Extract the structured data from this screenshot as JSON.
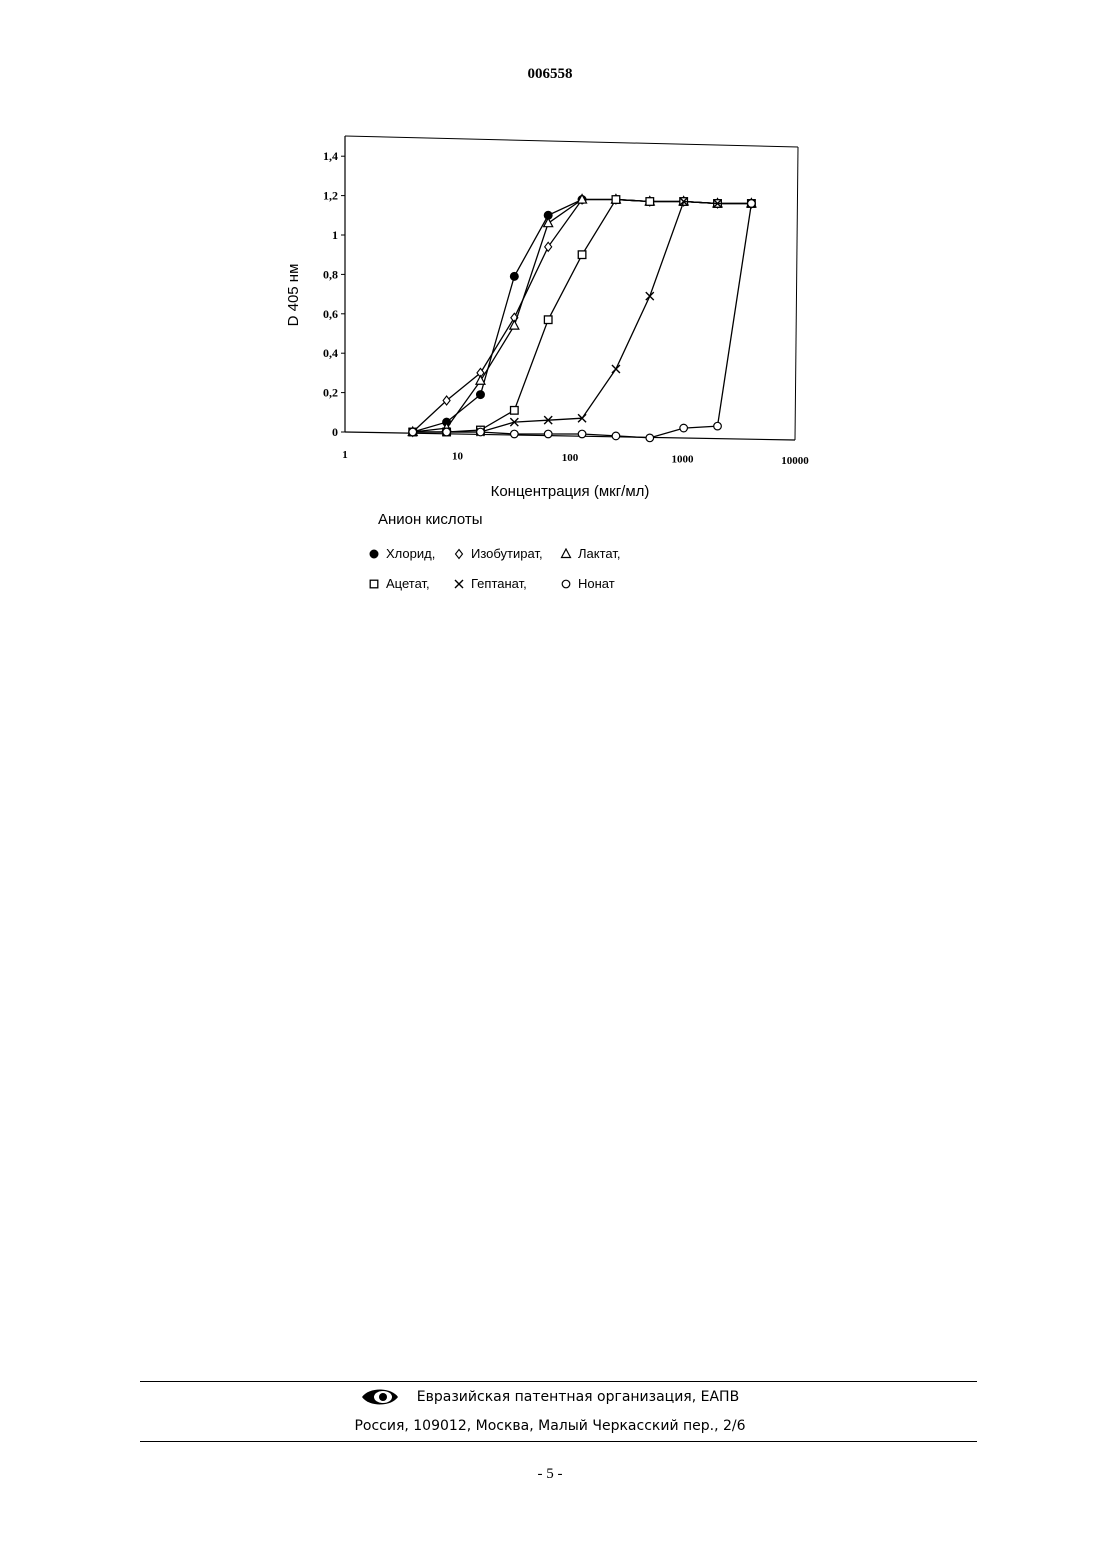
{
  "document": {
    "number": "006558",
    "page_number": "- 5 -"
  },
  "footer": {
    "organization": "Евразийская патентная организация, ЕАПВ",
    "address": "Россия, 109012, Москва, Малый Черкасский пер., 2/6",
    "logo_icon": "eapo-eye-logo-icon"
  },
  "legend": {
    "title": "Анион кислоты",
    "items": [
      {
        "label": "Хлорид,",
        "marker": "filled-circle"
      },
      {
        "label": "Изобутират,",
        "marker": "diamond"
      },
      {
        "label": "Лактат,",
        "marker": "triangle"
      },
      {
        "label": "Ацетат,",
        "marker": "square"
      },
      {
        "label": "Гептанат,",
        "marker": "x"
      },
      {
        "label": "Нонат",
        "marker": "circle"
      }
    ]
  },
  "chart_data": {
    "type": "line",
    "title": "",
    "xlabel": "Концентрация (мкг/мл)",
    "ylabel": "D 405 нм",
    "xscale": "log",
    "xlim": [
      1,
      10000
    ],
    "ylim": [
      0,
      1.5
    ],
    "xticks": [
      1,
      10,
      100,
      1000,
      10000
    ],
    "xtick_labels": [
      "1",
      "10",
      "100",
      "1000",
      "10000"
    ],
    "yticks": [
      0,
      0.2,
      0.4,
      0.6,
      0.8,
      1,
      1.2,
      1.4
    ],
    "ytick_labels": [
      "0",
      "0,2",
      "0,4",
      "0,6",
      "0,8",
      "1",
      "1,2",
      "1,4"
    ],
    "grid": false,
    "legend_position": "below",
    "series": [
      {
        "name": "Хлорид",
        "marker": "filled-circle",
        "x": [
          4,
          8,
          16,
          32,
          64,
          128,
          256,
          512,
          1024,
          2048,
          4096
        ],
        "y": [
          0,
          0.05,
          0.19,
          0.79,
          1.1,
          1.18,
          1.18,
          1.17,
          1.17,
          1.16,
          1.16
        ]
      },
      {
        "name": "Изобутират",
        "marker": "diamond",
        "x": [
          4,
          8,
          16,
          32,
          64,
          128,
          256,
          512,
          1024,
          2048,
          4096
        ],
        "y": [
          0,
          0.16,
          0.3,
          0.58,
          0.94,
          1.18,
          1.18,
          1.17,
          1.17,
          1.16,
          1.16
        ]
      },
      {
        "name": "Лактат",
        "marker": "triangle",
        "x": [
          4,
          8,
          16,
          32,
          64,
          128,
          256,
          512,
          1024,
          2048,
          4096
        ],
        "y": [
          0,
          0.02,
          0.26,
          0.54,
          1.06,
          1.18,
          1.18,
          1.17,
          1.17,
          1.16,
          1.16
        ]
      },
      {
        "name": "Ацетат",
        "marker": "square",
        "x": [
          4,
          8,
          16,
          32,
          64,
          128,
          256,
          512,
          1024,
          2048,
          4096
        ],
        "y": [
          0,
          0,
          0.01,
          0.11,
          0.57,
          0.9,
          1.18,
          1.17,
          1.17,
          1.16,
          1.16
        ]
      },
      {
        "name": "Гептанат",
        "marker": "x",
        "x": [
          4,
          8,
          16,
          32,
          64,
          128,
          256,
          512,
          1024,
          2048,
          4096
        ],
        "y": [
          0,
          0,
          0,
          0.05,
          0.06,
          0.07,
          0.32,
          0.69,
          1.17,
          1.16,
          1.16
        ]
      },
      {
        "name": "Нонат",
        "marker": "circle",
        "x": [
          4,
          8,
          16,
          32,
          64,
          128,
          256,
          512,
          1024,
          2048,
          4096
        ],
        "y": [
          0,
          0,
          0,
          -0.01,
          -0.01,
          -0.01,
          -0.02,
          -0.03,
          0.02,
          0.03,
          1.16
        ]
      }
    ]
  }
}
